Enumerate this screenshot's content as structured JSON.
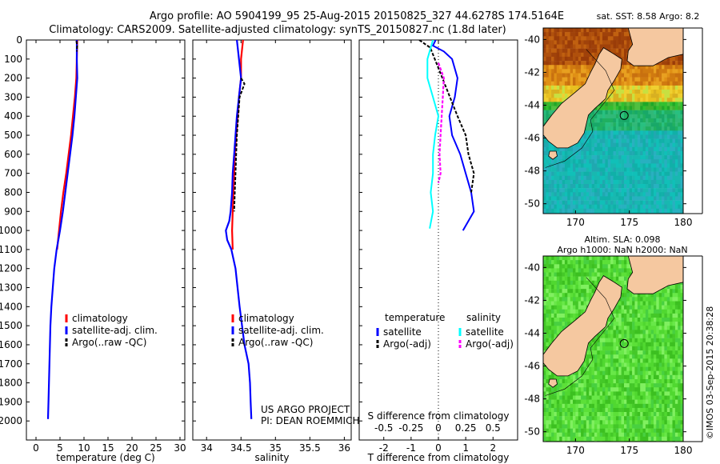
{
  "header": {
    "line1": "Argo profile: AO 5904199_95 25-Aug-2015 20150825_327 44.6278S 174.5164E",
    "line2": "Climatology: CARS2009. Satellite-adjusted climatology: synTS_20150827.nc (1.8d later)"
  },
  "colors": {
    "climatology": "#ff0000",
    "satellite": "#0000ff",
    "argo": "#000000",
    "sal_satellite": "#00ffff",
    "sal_argo": "#ff00ff",
    "land": "#f5c8a0"
  },
  "chart_data": [
    {
      "type": "line",
      "xlabel": "temperature (deg C)",
      "ylabel": "",
      "xlim": [
        -2,
        31
      ],
      "ylim": [
        2100,
        0
      ],
      "xticks": [
        0,
        5,
        10,
        15,
        20,
        25,
        30
      ],
      "yticks": [
        0,
        100,
        200,
        300,
        400,
        500,
        600,
        700,
        800,
        900,
        1000,
        1100,
        1200,
        1300,
        1400,
        1500,
        1600,
        1700,
        1800,
        1900,
        2000
      ],
      "legend": [
        "climatology",
        "satellite-adj. clim.",
        "Argo(..raw -QC)"
      ],
      "series": [
        {
          "name": "climatology",
          "points": [
            [
              8.6,
              0
            ],
            [
              8.5,
              100
            ],
            [
              8.4,
              200
            ],
            [
              8.1,
              300
            ],
            [
              7.7,
              400
            ],
            [
              7.3,
              500
            ],
            [
              6.8,
              600
            ],
            [
              6.3,
              700
            ],
            [
              5.7,
              800
            ],
            [
              5.2,
              900
            ],
            [
              4.8,
              1000
            ],
            [
              4.4,
              1100
            ]
          ]
        },
        {
          "name": "satellite-adj. clim.",
          "points": [
            [
              8.5,
              0
            ],
            [
              8.5,
              100
            ],
            [
              8.6,
              200
            ],
            [
              8.3,
              300
            ],
            [
              8.0,
              400
            ],
            [
              7.6,
              500
            ],
            [
              7.1,
              600
            ],
            [
              6.6,
              700
            ],
            [
              6.1,
              800
            ],
            [
              5.6,
              900
            ],
            [
              5.0,
              1000
            ],
            [
              4.3,
              1100
            ],
            [
              3.8,
              1200
            ],
            [
              3.5,
              1300
            ],
            [
              3.2,
              1400
            ],
            [
              3.0,
              1500
            ],
            [
              2.9,
              1600
            ],
            [
              2.8,
              1700
            ],
            [
              2.7,
              1800
            ],
            [
              2.6,
              1900
            ],
            [
              2.5,
              1990
            ]
          ]
        },
        {
          "name": "Argo(..raw -QC)",
          "points": [
            [
              8.4,
              5
            ],
            [
              8.6,
              30
            ],
            [
              8.5,
              60
            ]
          ]
        }
      ]
    },
    {
      "type": "line",
      "xlabel": "salinity",
      "ylabel": "",
      "xlim": [
        33.8,
        36.1
      ],
      "ylim": [
        2100,
        0
      ],
      "xticks": [
        34,
        34.5,
        35,
        35.5,
        36
      ],
      "xtick_labels": [
        "34",
        "34.5",
        "35",
        "35.5",
        "36"
      ],
      "legend": [
        "climatology",
        "satellite-adj. clim.",
        "Argo(..raw -QC)"
      ],
      "series": [
        {
          "name": "climatology",
          "points": [
            [
              34.53,
              0
            ],
            [
              34.5,
              100
            ],
            [
              34.5,
              200
            ],
            [
              34.47,
              300
            ],
            [
              34.45,
              400
            ],
            [
              34.43,
              500
            ],
            [
              34.41,
              600
            ],
            [
              34.4,
              700
            ],
            [
              34.39,
              800
            ],
            [
              34.38,
              900
            ],
            [
              34.37,
              1000
            ],
            [
              34.38,
              1100
            ]
          ]
        },
        {
          "name": "satellite-adj. clim.",
          "points": [
            [
              34.44,
              0
            ],
            [
              34.47,
              100
            ],
            [
              34.5,
              200
            ],
            [
              34.47,
              300
            ],
            [
              34.44,
              400
            ],
            [
              34.42,
              500
            ],
            [
              34.4,
              600
            ],
            [
              34.38,
              700
            ],
            [
              34.37,
              800
            ],
            [
              34.35,
              900
            ],
            [
              34.33,
              950
            ],
            [
              34.28,
              1000
            ],
            [
              34.3,
              1050
            ],
            [
              34.36,
              1100
            ],
            [
              34.42,
              1200
            ],
            [
              34.48,
              1400
            ],
            [
              34.55,
              1600
            ],
            [
              34.61,
              1700
            ],
            [
              34.63,
              1800
            ],
            [
              34.64,
              1900
            ],
            [
              34.65,
              1990
            ]
          ]
        },
        {
          "name": "Argo(..raw -QC)",
          "points": [
            [
              34.5,
              200
            ],
            [
              34.55,
              230
            ],
            [
              34.48,
              300
            ],
            [
              34.46,
              400
            ],
            [
              34.44,
              500
            ],
            [
              34.43,
              600
            ],
            [
              34.42,
              700
            ],
            [
              34.41,
              800
            ],
            [
              34.4,
              900
            ]
          ]
        }
      ],
      "annotations": [
        "US ARGO PROJECT",
        "PI: DEAN ROEMMICH"
      ]
    },
    {
      "type": "line",
      "xlabel": "T difference from climatology",
      "xlabel2": "S difference from climatology",
      "xlim": [
        -2.9,
        2.9
      ],
      "ylim": [
        2100,
        0
      ],
      "xticks": [
        -2,
        -1,
        0,
        1,
        2
      ],
      "xticks_top": [
        -0.5,
        -0.25,
        0,
        0.25,
        0.5
      ],
      "xtick_top_labels": [
        "-0.5",
        "-0.25",
        "0",
        "0.25",
        "0.5"
      ],
      "legend_temperature_header": "temperature",
      "legend_salinity_header": "salinity",
      "legend": [
        "satellite",
        "Argo(-adj)",
        "satellite",
        "Argo(-adj)"
      ],
      "series": [
        {
          "name": "temperature satellite",
          "points": [
            [
              -0.1,
              0
            ],
            [
              -0.2,
              30
            ],
            [
              0.2,
              60
            ],
            [
              0.5,
              100
            ],
            [
              0.7,
              200
            ],
            [
              0.6,
              300
            ],
            [
              0.4,
              400
            ],
            [
              0.5,
              500
            ],
            [
              0.8,
              600
            ],
            [
              1.0,
              700
            ],
            [
              1.2,
              800
            ],
            [
              1.3,
              900
            ],
            [
              0.9,
              1000
            ]
          ]
        },
        {
          "name": "temperature Argo(-adj)",
          "points": [
            [
              -0.7,
              0
            ],
            [
              -0.5,
              20
            ],
            [
              -0.3,
              40
            ],
            [
              0.7,
              400
            ],
            [
              1.0,
              500
            ],
            [
              1.1,
              600
            ],
            [
              1.3,
              700
            ],
            [
              1.2,
              800
            ]
          ]
        },
        {
          "name": "salinity satellite",
          "points": [
            [
              -0.05,
              0
            ],
            [
              -0.1,
              100
            ],
            [
              -0.1,
              200
            ],
            [
              -0.05,
              300
            ],
            [
              0.0,
              400
            ],
            [
              -0.03,
              500
            ],
            [
              -0.05,
              600
            ],
            [
              -0.05,
              700
            ],
            [
              -0.07,
              800
            ],
            [
              -0.05,
              900
            ],
            [
              -0.08,
              990
            ]
          ]
        },
        {
          "name": "salinity Argo(-adj)",
          "points": [
            [
              0.0,
              120
            ],
            [
              0.05,
              200
            ],
            [
              0.04,
              300
            ],
            [
              0.03,
              400
            ],
            [
              0.02,
              500
            ],
            [
              0.01,
              600
            ],
            [
              0.02,
              700
            ],
            [
              0.0,
              750
            ]
          ]
        }
      ]
    },
    {
      "type": "heatmap",
      "title": "sat. SST: 8.58 Argo: 8.2",
      "xticks": [
        170,
        175,
        180
      ],
      "yticks": [
        -40,
        -42,
        -44,
        -46,
        -48,
        -50
      ],
      "xlim": [
        167,
        180
      ],
      "ylim": [
        -50.6,
        -39.3
      ],
      "argo_position": [
        174.5164,
        -44.6278
      ]
    },
    {
      "type": "heatmap",
      "title_line1": "Altim. SLA: 0.098",
      "title_line2": "Argo h1000: NaN h2000: NaN",
      "xticks": [
        170,
        175,
        180
      ],
      "yticks": [
        -40,
        -42,
        -44,
        -46,
        -48,
        -50
      ],
      "xlim": [
        167,
        180
      ],
      "ylim": [
        -50.6,
        -39.3
      ],
      "argo_position": [
        174.5164,
        -44.6278
      ]
    }
  ],
  "side_label": "©IMOS 03-Sep-2015 20:38:28"
}
